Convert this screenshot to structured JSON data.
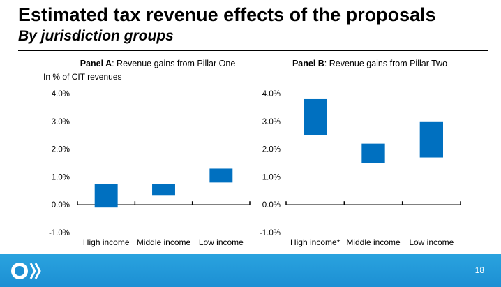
{
  "slide": {
    "title": "Estimated tax revenue effects of the proposals",
    "subtitle": "By jurisdiction groups",
    "page_number": "18",
    "accent_color": "#0070C0",
    "footer_color": "#2aa3df",
    "logo_icon": "oecd-logo-icon"
  },
  "chart_data": [
    {
      "type": "bar",
      "title_bold": "Panel A",
      "title_rest": ": Revenue gains from Pillar One",
      "ylabel": "In % of CIT revenues",
      "categories": [
        "High income",
        "Middle income",
        "Low income"
      ],
      "series": [
        {
          "low": [
            -0.1,
            0.35,
            0.8
          ],
          "high": [
            0.75,
            0.75,
            1.3
          ]
        }
      ],
      "yticks": [
        "-1.0%",
        "0.0%",
        "1.0%",
        "2.0%",
        "3.0%",
        "4.0%"
      ],
      "ylim": [
        -1.0,
        4.0
      ],
      "grid": false,
      "color": "#0070C0"
    },
    {
      "type": "bar",
      "title_bold": "Panel B",
      "title_rest": ": Revenue gains from Pillar Two",
      "ylabel": "",
      "categories": [
        "High income*",
        "Middle income",
        "Low income"
      ],
      "series": [
        {
          "low": [
            2.5,
            1.5,
            1.7
          ],
          "high": [
            3.8,
            2.2,
            3.0
          ]
        }
      ],
      "yticks": [
        "-1.0%",
        "0.0%",
        "1.0%",
        "2.0%",
        "3.0%",
        "4.0%"
      ],
      "ylim": [
        -1.0,
        4.0
      ],
      "grid": false,
      "color": "#0070C0"
    }
  ]
}
